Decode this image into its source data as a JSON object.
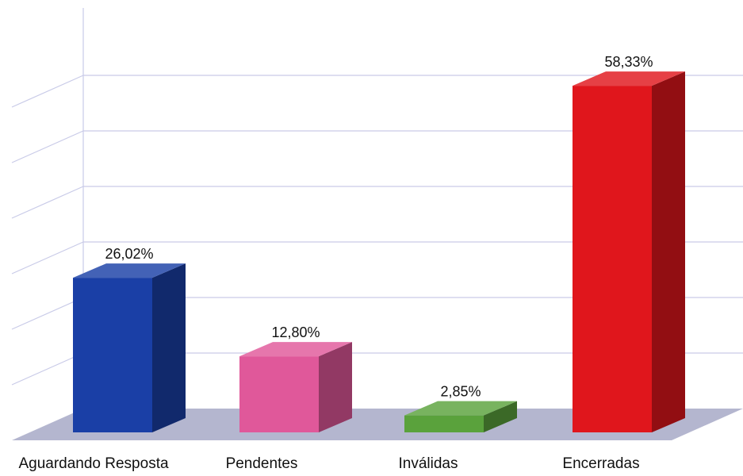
{
  "chart_data": {
    "type": "bar",
    "categories": [
      "Aguardando Resposta",
      "Pendentes",
      "Inválidas",
      "Encerradas"
    ],
    "values": [
      26.02,
      12.8,
      2.85,
      58.33
    ],
    "data_labels": [
      "26,02%",
      "12,80%",
      "2,85%",
      "58,33%"
    ],
    "colors": [
      "#1a3fa6",
      "#e0589a",
      "#5aa23c",
      "#e0161c"
    ],
    "ylim": [
      0,
      60
    ],
    "grid": true,
    "legend": "none",
    "style": "3d"
  }
}
